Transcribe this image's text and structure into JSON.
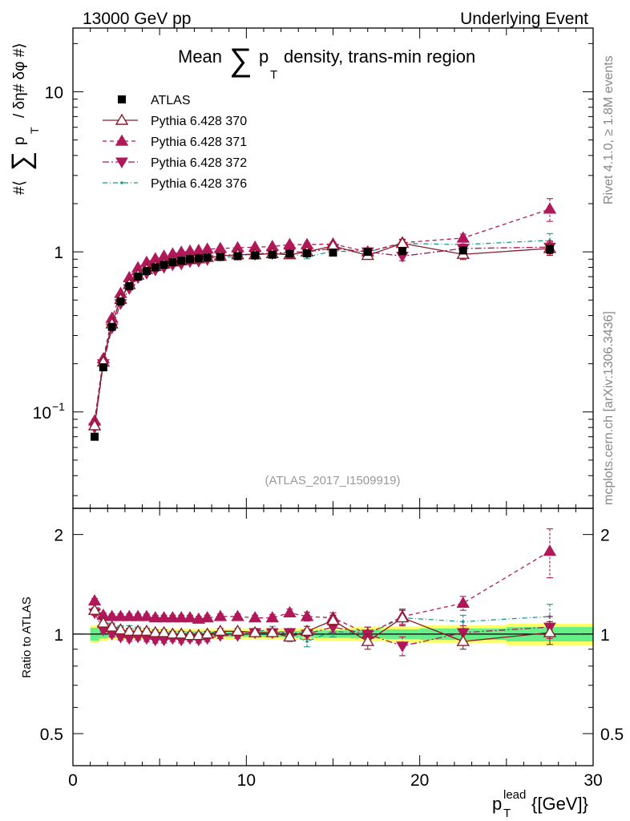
{
  "header": {
    "left": "13000 GeV pp",
    "right": "Underlying Event"
  },
  "side": {
    "rivet": "Rivet 4.1.0, ≥ 1.8M events",
    "mcplots": "mcplots.cern.ch [arXiv:1306.3436]"
  },
  "colors": {
    "atlas": "#000000",
    "p370": "#8b1a2a",
    "p371": "#b0185a",
    "p372": "#b0185a",
    "p376": "#1a9a8a",
    "band_inner": "#66ee88",
    "band_outer": "#ffff66"
  },
  "chart_data": [
    {
      "type": "scatter",
      "name": "main",
      "title_prefix": "Mean",
      "title_sum": "∑",
      "title_p": "p",
      "title_sub": "T",
      "title_suffix": "density, trans-min region",
      "ylabel_parts": [
        "#⟨",
        "∑",
        "p",
        "T",
        "/ δη# δφ #⟩"
      ],
      "yscale": "log",
      "xlim": [
        0,
        30
      ],
      "ylim": [
        0.025,
        25
      ],
      "yticks": [
        {
          "value": 0.1,
          "base": "10",
          "exp": "−1"
        },
        {
          "value": 1,
          "base": "1",
          "exp": ""
        },
        {
          "value": 10,
          "base": "10",
          "exp": ""
        }
      ],
      "watermark": "(ATLAS_2017_I1509919)",
      "legend": [
        {
          "label": "ATLAS",
          "key": "atlas"
        },
        {
          "label": "Pythia 6.428 370",
          "key": "p370"
        },
        {
          "label": "Pythia 6.428 371",
          "key": "p371"
        },
        {
          "label": "Pythia 6.428 372",
          "key": "p372"
        },
        {
          "label": "Pythia 6.428 376",
          "key": "p376"
        }
      ],
      "x": [
        1.25,
        1.75,
        2.25,
        2.75,
        3.25,
        3.75,
        4.25,
        4.75,
        5.25,
        5.75,
        6.25,
        6.75,
        7.25,
        7.75,
        8.5,
        9.5,
        10.5,
        11.5,
        12.5,
        13.5,
        15.0,
        17.0,
        19.0,
        22.5,
        27.5
      ],
      "series": [
        {
          "key": "atlas",
          "name": "ATLAS",
          "values": [
            0.07,
            0.19,
            0.34,
            0.49,
            0.61,
            0.7,
            0.76,
            0.8,
            0.83,
            0.86,
            0.88,
            0.9,
            0.91,
            0.92,
            0.93,
            0.94,
            0.95,
            0.96,
            0.97,
            0.98,
            0.99,
            1.0,
            1.01,
            1.02,
            1.04
          ],
          "err": [
            0.003,
            0.005,
            0.008,
            0.01,
            0.012,
            0.013,
            0.014,
            0.015,
            0.015,
            0.016,
            0.016,
            0.017,
            0.017,
            0.018,
            0.018,
            0.019,
            0.02,
            0.02,
            0.021,
            0.022,
            0.023,
            0.025,
            0.03,
            0.04,
            0.06
          ]
        },
        {
          "key": "p370",
          "name": "Pythia 6.428 370",
          "values": [
            0.082,
            0.205,
            0.355,
            0.505,
            0.625,
            0.715,
            0.775,
            0.81,
            0.84,
            0.865,
            0.88,
            0.895,
            0.905,
            0.925,
            0.94,
            0.96,
            0.96,
            0.975,
            0.96,
            1.0,
            1.09,
            0.95,
            1.13,
            0.965,
            1.05
          ],
          "err": [
            0.002,
            0.003,
            0.005,
            0.006,
            0.007,
            0.008,
            0.009,
            0.01,
            0.01,
            0.011,
            0.011,
            0.012,
            0.012,
            0.013,
            0.013,
            0.015,
            0.016,
            0.018,
            0.02,
            0.025,
            0.03,
            0.04,
            0.06,
            0.07,
            0.1
          ]
        },
        {
          "key": "p371",
          "name": "Pythia 6.428 371",
          "values": [
            0.088,
            0.215,
            0.385,
            0.55,
            0.69,
            0.795,
            0.86,
            0.905,
            0.94,
            0.97,
            0.995,
            1.01,
            1.02,
            1.04,
            1.05,
            1.06,
            1.07,
            1.08,
            1.11,
            1.11,
            1.12,
            1.0,
            1.14,
            1.22,
            1.85
          ],
          "err": [
            0.002,
            0.003,
            0.005,
            0.006,
            0.007,
            0.008,
            0.009,
            0.01,
            0.01,
            0.011,
            0.011,
            0.012,
            0.012,
            0.013,
            0.013,
            0.015,
            0.016,
            0.018,
            0.02,
            0.025,
            0.03,
            0.04,
            0.06,
            0.07,
            0.3
          ]
        },
        {
          "key": "p372",
          "name": "Pythia 6.428 372",
          "values": [
            0.08,
            0.2,
            0.335,
            0.475,
            0.59,
            0.69,
            0.735,
            0.77,
            0.8,
            0.83,
            0.84,
            0.87,
            0.875,
            0.895,
            0.95,
            0.965,
            0.965,
            0.975,
            1.0,
            1.0,
            1.05,
            1.0,
            0.94,
            1.05,
            1.07
          ],
          "err": [
            0.002,
            0.003,
            0.005,
            0.006,
            0.007,
            0.008,
            0.009,
            0.01,
            0.01,
            0.011,
            0.011,
            0.012,
            0.012,
            0.013,
            0.013,
            0.015,
            0.016,
            0.018,
            0.02,
            0.025,
            0.03,
            0.04,
            0.06,
            0.07,
            0.1
          ]
        },
        {
          "key": "p376",
          "name": "Pythia 6.428 376",
          "values": [
            0.085,
            0.21,
            0.36,
            0.51,
            0.635,
            0.72,
            0.775,
            0.805,
            0.835,
            0.855,
            0.865,
            0.88,
            0.87,
            0.89,
            0.92,
            0.94,
            0.97,
            0.99,
            0.97,
            0.93,
            1.01,
            1.0,
            1.13,
            1.11,
            1.18
          ],
          "err": [
            0.002,
            0.003,
            0.005,
            0.006,
            0.007,
            0.008,
            0.009,
            0.01,
            0.01,
            0.011,
            0.011,
            0.012,
            0.012,
            0.013,
            0.013,
            0.015,
            0.016,
            0.018,
            0.02,
            0.025,
            0.03,
            0.04,
            0.06,
            0.07,
            0.12
          ]
        }
      ]
    },
    {
      "type": "scatter",
      "name": "ratio",
      "ylabel": "Ratio to ATLAS",
      "yscale": "log",
      "xlim": [
        0,
        30
      ],
      "ylim": [
        0.4,
        2.4
      ],
      "yticks": [
        {
          "value": 0.5,
          "label": "0.5"
        },
        {
          "value": 1,
          "label": "1"
        },
        {
          "value": 2,
          "label": "2"
        }
      ],
      "xticks": [
        {
          "value": 0,
          "label": "0"
        },
        {
          "value": 10,
          "label": "10"
        },
        {
          "value": 20,
          "label": "20"
        },
        {
          "value": 30,
          "label": "30"
        }
      ],
      "xlabel_main": "p",
      "xlabel_sup": "lead",
      "xlabel_sub": "T",
      "xlabel_unit": "{[GeV]}",
      "band": {
        "x_edges": [
          1.0,
          1.5,
          2.0,
          2.5,
          3.0,
          3.5,
          4.0,
          4.5,
          5.0,
          5.5,
          6.0,
          6.5,
          7.0,
          7.5,
          8.0,
          9.0,
          10.0,
          11.0,
          12.0,
          13.0,
          14.0,
          16.0,
          18.0,
          20.0,
          25.0,
          30.0
        ],
        "inner": [
          0.045,
          0.03,
          0.025,
          0.022,
          0.02,
          0.02,
          0.02,
          0.02,
          0.02,
          0.02,
          0.02,
          0.02,
          0.02,
          0.02,
          0.02,
          0.02,
          0.02,
          0.02,
          0.022,
          0.024,
          0.026,
          0.03,
          0.034,
          0.04,
          0.05
        ],
        "outer": [
          0.06,
          0.045,
          0.04,
          0.038,
          0.036,
          0.036,
          0.036,
          0.036,
          0.036,
          0.036,
          0.036,
          0.036,
          0.036,
          0.036,
          0.036,
          0.036,
          0.036,
          0.036,
          0.038,
          0.04,
          0.044,
          0.05,
          0.056,
          0.062,
          0.075
        ]
      },
      "x": [
        1.25,
        1.75,
        2.25,
        2.75,
        3.25,
        3.75,
        4.25,
        4.75,
        5.25,
        5.75,
        6.25,
        6.75,
        7.25,
        7.75,
        8.5,
        9.5,
        10.5,
        11.5,
        12.5,
        13.5,
        15.0,
        17.0,
        19.0,
        22.5,
        27.5
      ],
      "series": [
        {
          "key": "p370",
          "name": "Pythia 6.428 370",
          "values": [
            1.18,
            1.08,
            1.05,
            1.03,
            1.02,
            1.02,
            1.02,
            1.01,
            1.01,
            1.0,
            1.0,
            0.99,
            0.99,
            1.0,
            1.02,
            1.02,
            1.01,
            1.01,
            0.98,
            1.02,
            1.1,
            0.95,
            1.12,
            0.95,
            1.01
          ],
          "err": [
            0.02,
            0.02,
            0.02,
            0.02,
            0.02,
            0.02,
            0.02,
            0.02,
            0.02,
            0.02,
            0.02,
            0.02,
            0.02,
            0.02,
            0.02,
            0.02,
            0.02,
            0.025,
            0.03,
            0.035,
            0.04,
            0.05,
            0.06,
            0.05,
            0.08
          ]
        },
        {
          "key": "p371",
          "name": "Pythia 6.428 371",
          "values": [
            1.26,
            1.14,
            1.13,
            1.13,
            1.13,
            1.13,
            1.13,
            1.12,
            1.12,
            1.12,
            1.12,
            1.12,
            1.11,
            1.12,
            1.13,
            1.13,
            1.12,
            1.12,
            1.16,
            1.13,
            1.12,
            1.0,
            1.13,
            1.24,
            1.78
          ],
          "err": [
            0.02,
            0.02,
            0.02,
            0.02,
            0.02,
            0.02,
            0.02,
            0.02,
            0.02,
            0.02,
            0.02,
            0.02,
            0.02,
            0.02,
            0.02,
            0.02,
            0.02,
            0.025,
            0.03,
            0.035,
            0.04,
            0.05,
            0.06,
            0.06,
            0.3
          ]
        },
        {
          "key": "p372",
          "name": "Pythia 6.428 372",
          "values": [
            1.16,
            1.03,
            1.0,
            0.98,
            0.97,
            0.98,
            0.97,
            0.96,
            0.96,
            0.97,
            0.96,
            0.97,
            0.96,
            0.97,
            0.99,
            0.99,
            1.01,
            1.01,
            1.01,
            1.0,
            1.05,
            1.0,
            0.92,
            1.01,
            1.05
          ],
          "err": [
            0.02,
            0.02,
            0.02,
            0.02,
            0.02,
            0.02,
            0.02,
            0.02,
            0.02,
            0.02,
            0.02,
            0.02,
            0.02,
            0.02,
            0.02,
            0.02,
            0.02,
            0.025,
            0.03,
            0.035,
            0.04,
            0.05,
            0.06,
            0.05,
            0.08
          ]
        },
        {
          "key": "p376",
          "name": "Pythia 6.428 376",
          "values": [
            1.22,
            1.1,
            1.06,
            1.04,
            1.04,
            1.03,
            1.02,
            1.01,
            1.0,
            0.99,
            0.98,
            0.98,
            0.96,
            0.97,
            0.99,
            1.0,
            1.02,
            1.03,
            1.0,
            0.95,
            1.02,
            1.0,
            1.12,
            1.09,
            1.13
          ],
          "err": [
            0.02,
            0.02,
            0.02,
            0.02,
            0.02,
            0.02,
            0.02,
            0.02,
            0.02,
            0.02,
            0.02,
            0.02,
            0.02,
            0.02,
            0.02,
            0.02,
            0.02,
            0.025,
            0.03,
            0.035,
            0.04,
            0.05,
            0.06,
            0.05,
            0.1
          ]
        }
      ]
    }
  ]
}
